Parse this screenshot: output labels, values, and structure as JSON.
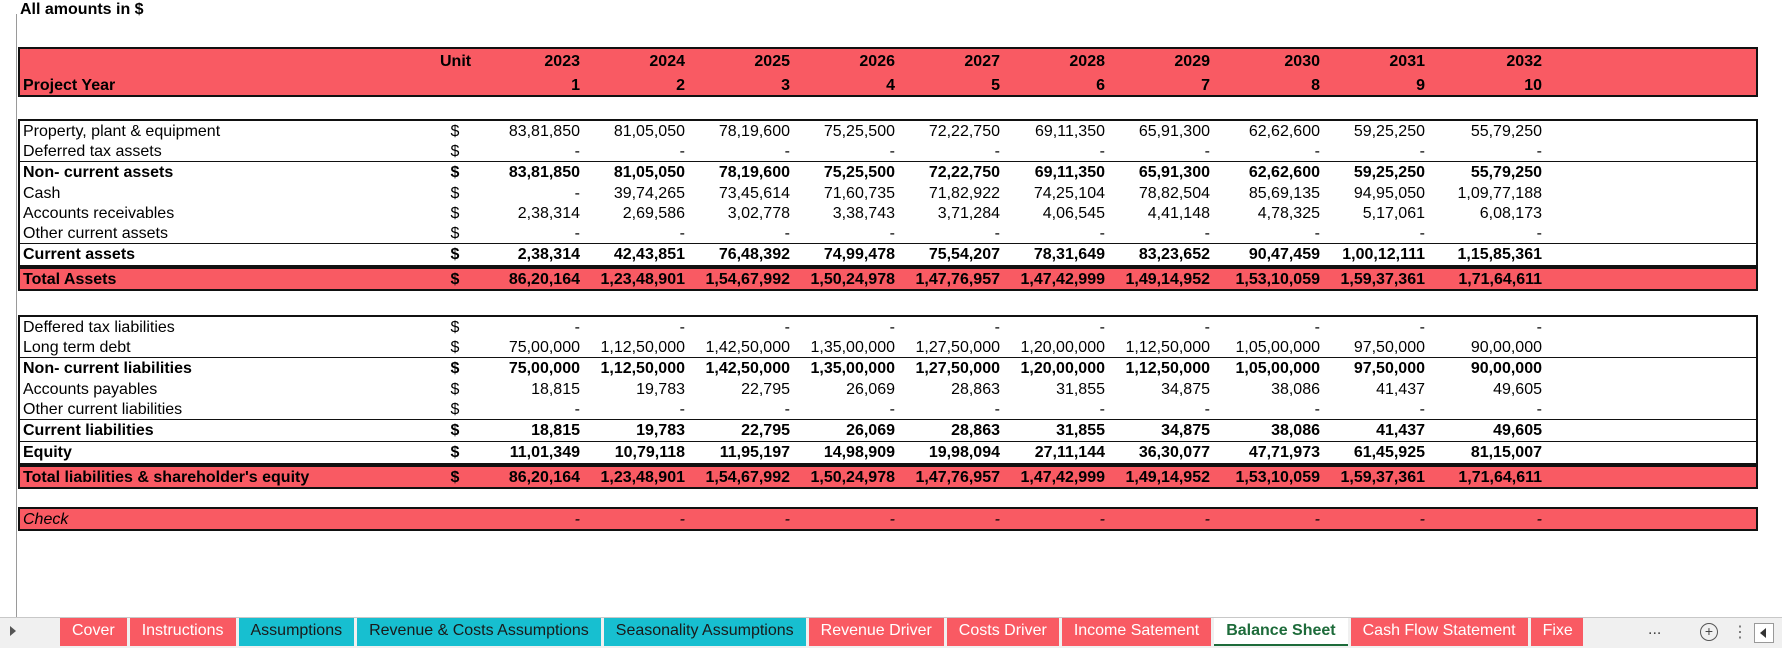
{
  "note": "All amounts in $",
  "header": {
    "row_label": "Project Year",
    "unit_label": "Unit",
    "years": [
      "2023",
      "2024",
      "2025",
      "2026",
      "2027",
      "2028",
      "2029",
      "2030",
      "2031",
      "2032"
    ],
    "index": [
      "1",
      "2",
      "3",
      "4",
      "5",
      "6",
      "7",
      "8",
      "9",
      "10"
    ]
  },
  "assets": [
    {
      "label": "Property, plant & equipment",
      "unit": "$",
      "bold": false,
      "values": [
        "83,81,850",
        "81,05,050",
        "78,19,600",
        "75,25,500",
        "72,22,750",
        "69,11,350",
        "65,91,300",
        "62,62,600",
        "59,25,250",
        "55,79,250"
      ]
    },
    {
      "label": "Deferred tax assets",
      "unit": "$",
      "bold": false,
      "values": [
        "-",
        "-",
        "-",
        "-",
        "-",
        "-",
        "-",
        "-",
        "-",
        "-"
      ]
    },
    {
      "label": "Non- current assets",
      "unit": "$",
      "bold": true,
      "values": [
        "83,81,850",
        "81,05,050",
        "78,19,600",
        "75,25,500",
        "72,22,750",
        "69,11,350",
        "65,91,300",
        "62,62,600",
        "59,25,250",
        "55,79,250"
      ]
    },
    {
      "label": "Cash",
      "unit": "$",
      "bold": false,
      "values": [
        "-",
        "39,74,265",
        "73,45,614",
        "71,60,735",
        "71,82,922",
        "74,25,104",
        "78,82,504",
        "85,69,135",
        "94,95,050",
        "1,09,77,188"
      ]
    },
    {
      "label": "Accounts receivables",
      "unit": "$",
      "bold": false,
      "values": [
        "2,38,314",
        "2,69,586",
        "3,02,778",
        "3,38,743",
        "3,71,284",
        "4,06,545",
        "4,41,148",
        "4,78,325",
        "5,17,061",
        "6,08,173"
      ]
    },
    {
      "label": "Other current assets",
      "unit": "$",
      "bold": false,
      "values": [
        "-",
        "-",
        "-",
        "-",
        "-",
        "-",
        "-",
        "-",
        "-",
        "-"
      ]
    },
    {
      "label": "Current assets",
      "unit": "$",
      "bold": true,
      "values": [
        "2,38,314",
        "42,43,851",
        "76,48,392",
        "74,99,478",
        "75,54,207",
        "78,31,649",
        "83,23,652",
        "90,47,459",
        "1,00,12,111",
        "1,15,85,361"
      ]
    }
  ],
  "total_assets": {
    "label": "Total Assets",
    "unit": "$",
    "values": [
      "86,20,164",
      "1,23,48,901",
      "1,54,67,992",
      "1,50,24,978",
      "1,47,76,957",
      "1,47,42,999",
      "1,49,14,952",
      "1,53,10,059",
      "1,59,37,361",
      "1,71,64,611"
    ]
  },
  "liabilities": [
    {
      "label": "Deffered tax liabilities",
      "unit": "$",
      "bold": false,
      "values": [
        "-",
        "-",
        "-",
        "-",
        "-",
        "-",
        "-",
        "-",
        "-",
        "-"
      ]
    },
    {
      "label": "Long term debt",
      "unit": "$",
      "bold": false,
      "values": [
        "75,00,000",
        "1,12,50,000",
        "1,42,50,000",
        "1,35,00,000",
        "1,27,50,000",
        "1,20,00,000",
        "1,12,50,000",
        "1,05,00,000",
        "97,50,000",
        "90,00,000"
      ]
    },
    {
      "label": "Non- current liabilities",
      "unit": "$",
      "bold": true,
      "values": [
        "75,00,000",
        "1,12,50,000",
        "1,42,50,000",
        "1,35,00,000",
        "1,27,50,000",
        "1,20,00,000",
        "1,12,50,000",
        "1,05,00,000",
        "97,50,000",
        "90,00,000"
      ]
    },
    {
      "label": "Accounts payables",
      "unit": "$",
      "bold": false,
      "values": [
        "18,815",
        "19,783",
        "22,795",
        "26,069",
        "28,863",
        "31,855",
        "34,875",
        "38,086",
        "41,437",
        "49,605"
      ]
    },
    {
      "label": "Other current liabilities",
      "unit": "$",
      "bold": false,
      "values": [
        "-",
        "-",
        "-",
        "-",
        "-",
        "-",
        "-",
        "-",
        "-",
        "-"
      ]
    },
    {
      "label": "Current liabilities",
      "unit": "$",
      "bold": true,
      "values": [
        "18,815",
        "19,783",
        "22,795",
        "26,069",
        "28,863",
        "31,855",
        "34,875",
        "38,086",
        "41,437",
        "49,605"
      ]
    },
    {
      "label": "Equity",
      "unit": "$",
      "bold": true,
      "values": [
        "11,01,349",
        "10,79,118",
        "11,95,197",
        "14,98,909",
        "19,98,094",
        "27,11,144",
        "36,30,077",
        "47,71,973",
        "61,45,925",
        "81,15,007"
      ]
    }
  ],
  "total_liabilities": {
    "label": "Total liabilities & shareholder's equity",
    "unit": "$",
    "values": [
      "86,20,164",
      "1,23,48,901",
      "1,54,67,992",
      "1,50,24,978",
      "1,47,76,957",
      "1,47,42,999",
      "1,49,14,952",
      "1,53,10,059",
      "1,59,37,361",
      "1,71,64,611"
    ]
  },
  "check": {
    "label": "Check",
    "values": [
      "-",
      "-",
      "-",
      "-",
      "-",
      "-",
      "-",
      "-",
      "-",
      "-"
    ]
  },
  "tabs": [
    {
      "label": "Cover",
      "color": "red"
    },
    {
      "label": "Instructions",
      "color": "red"
    },
    {
      "label": "Assumptions",
      "color": "teal"
    },
    {
      "label": "Revenue & Costs Assumptions",
      "color": "teal"
    },
    {
      "label": "Seasonality Assumptions",
      "color": "teal"
    },
    {
      "label": "Revenue Driver",
      "color": "red"
    },
    {
      "label": "Costs Driver",
      "color": "red"
    },
    {
      "label": "Income Satement",
      "color": "red"
    },
    {
      "label": "Balance Sheet",
      "color": "active"
    },
    {
      "label": "Cash Flow Statement",
      "color": "red"
    },
    {
      "label": "Fixe",
      "color": "partial"
    }
  ],
  "tab_more": "...",
  "colors": {
    "header_red": "#f95a63",
    "teal": "#17bfd0",
    "active_tab_text": "#1d6b3a"
  }
}
